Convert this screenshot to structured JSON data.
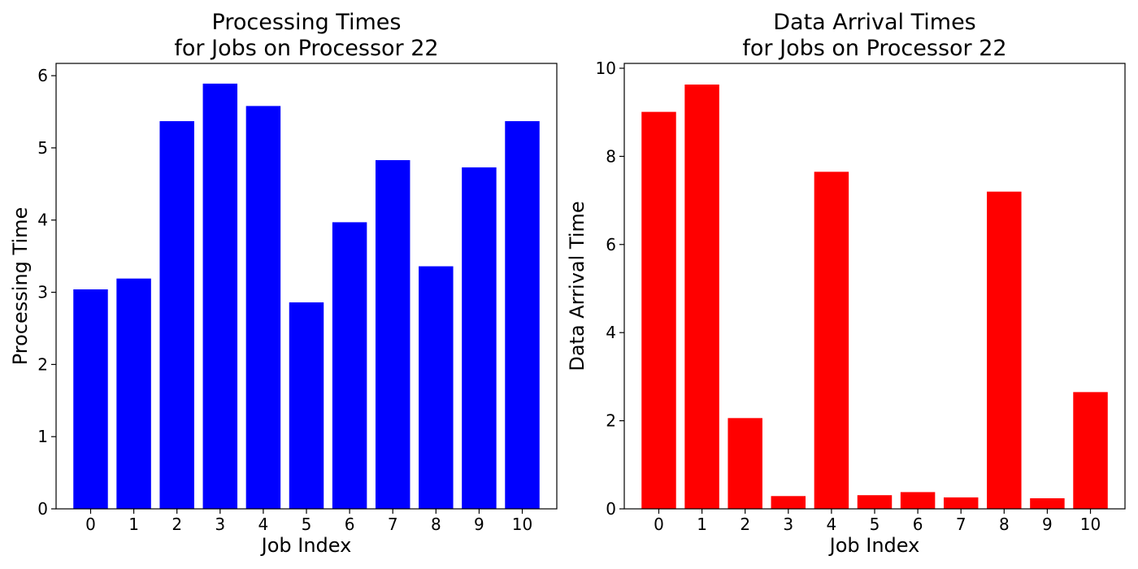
{
  "chart_data": [
    {
      "type": "bar",
      "title_lines": [
        "Processing Times",
        "for Jobs on Processor 22"
      ],
      "xlabel": "Job Index",
      "ylabel": "Processing Time",
      "categories": [
        "0",
        "1",
        "2",
        "3",
        "4",
        "5",
        "6",
        "7",
        "8",
        "9",
        "10"
      ],
      "values": [
        3.04,
        3.19,
        5.37,
        5.89,
        5.58,
        2.86,
        3.97,
        4.83,
        3.36,
        4.73,
        5.37
      ],
      "ylim": [
        0,
        6.17
      ],
      "yticks": [
        0,
        1,
        2,
        3,
        4,
        5,
        6
      ],
      "color": "#0000ff",
      "grid": false
    },
    {
      "type": "bar",
      "title_lines": [
        "Data Arrival Times",
        "for Jobs on Processor 22"
      ],
      "xlabel": "Job Index",
      "ylabel": "Data Arrival Time",
      "categories": [
        "0",
        "1",
        "2",
        "3",
        "4",
        "5",
        "6",
        "7",
        "8",
        "9",
        "10"
      ],
      "values": [
        9.01,
        9.63,
        2.06,
        0.29,
        7.65,
        0.31,
        0.38,
        0.26,
        7.2,
        0.24,
        2.65
      ],
      "ylim": [
        0,
        10.11
      ],
      "yticks": [
        0,
        2,
        4,
        6,
        8,
        10
      ],
      "color": "#ff0000",
      "grid": false
    }
  ]
}
